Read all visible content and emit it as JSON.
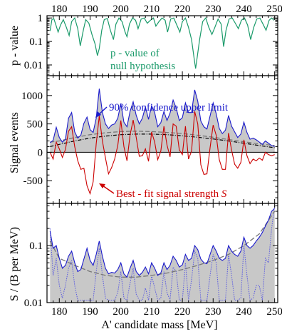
{
  "chart_data": [
    {
      "type": "line",
      "panel": "top",
      "xlabel": "",
      "ylabel": "p - value",
      "xlim": [
        176,
        251
      ],
      "yscale": "log",
      "ylim": [
        0.0035,
        1.25
      ],
      "x_ticks": [
        "180",
        "190",
        "200",
        "210",
        "220",
        "230",
        "240",
        "250"
      ],
      "y_ticks": [
        "0.01",
        "0.1",
        "1"
      ],
      "annotation": "p - value of\nnull hypothesis",
      "annotation_lines": [
        "p - value of",
        "null hypothesis"
      ],
      "series": [
        {
          "color": "#1a9a6a",
          "x": [
            177,
            177.6,
            178.2,
            178.8,
            179.6,
            180.4,
            181.3,
            182.3,
            183.2,
            184.0,
            185.0,
            186.0,
            186.8,
            187.8,
            188.6,
            189.6,
            190.6,
            191.6,
            192.4,
            193.0,
            193.8,
            194.6,
            195.6,
            196.6,
            197.6,
            198.4,
            199.4,
            200.4,
            201.4,
            202.0,
            202.8,
            203.8,
            204.8,
            205.6,
            206.6,
            207.6,
            208.6,
            209.6,
            210.6,
            211.4,
            212.4,
            213.4,
            214.4,
            215.2,
            216.2,
            217.2,
            218.2,
            219.2,
            220.0,
            221.0,
            222.0,
            223.0,
            223.8,
            224.3,
            224.8,
            225.6,
            226.6,
            227.6,
            228.6,
            229.6,
            230.4,
            231.6,
            232.6,
            233.4,
            234.2,
            235.2,
            236.2,
            237.2,
            238.2,
            239.2,
            240.2,
            241.2,
            242.2,
            243.2,
            244.2,
            245.2,
            246.2,
            247.2,
            248.2,
            249.0,
            249.8
          ],
          "y": [
            0.28,
            0.85,
            0.95,
            0.55,
            0.25,
            0.5,
            0.85,
            0.4,
            0.18,
            0.7,
            1.0,
            0.35,
            0.065,
            0.3,
            0.85,
            0.6,
            0.2,
            0.08,
            0.025,
            0.05,
            0.3,
            0.85,
            0.95,
            0.3,
            0.12,
            0.55,
            1.0,
            0.7,
            0.25,
            0.16,
            0.55,
            1.0,
            0.8,
            0.35,
            0.9,
            1.0,
            0.6,
            0.8,
            1.0,
            0.45,
            0.7,
            1.0,
            0.8,
            0.25,
            0.9,
            1.0,
            0.5,
            0.25,
            0.7,
            1.0,
            0.4,
            0.12,
            0.02,
            0.007,
            0.02,
            0.12,
            0.7,
            1.0,
            0.4,
            0.2,
            0.35,
            0.9,
            0.55,
            0.06,
            0.3,
            0.9,
            1.0,
            0.6,
            0.35,
            0.8,
            1.0,
            0.5,
            0.12,
            0.4,
            0.9,
            1.0,
            0.55,
            0.3,
            0.8,
            1.0,
            0.8
          ]
        }
      ]
    },
    {
      "type": "line",
      "panel": "middle",
      "xlabel": "",
      "ylabel": "Signal events",
      "xlim": [
        176,
        251
      ],
      "ylim": [
        -900,
        1350
      ],
      "y_ticks": [
        "-500",
        "0",
        "500",
        "1000"
      ],
      "upper_limit_label": "90% confidence  upper limit",
      "best_fit_label": "Best - fit signal strength S",
      "best_fit_label_parts": [
        "Best - fit signal strength ",
        "S"
      ],
      "series": [
        {
          "color": "#1a1acc",
          "role": "upper-limit",
          "x": [
            177,
            178,
            179,
            180,
            181,
            182,
            183,
            184,
            185,
            186,
            187,
            188,
            189,
            190,
            191,
            192,
            193,
            194,
            195,
            196,
            197,
            198,
            199,
            200,
            201,
            202,
            203,
            204,
            205,
            206,
            207,
            208,
            209,
            210,
            211,
            212,
            213,
            214,
            215,
            216,
            217,
            218,
            219,
            220,
            221,
            222,
            223,
            224,
            225,
            226,
            227,
            228,
            229,
            230,
            231,
            232,
            233,
            234,
            235,
            236,
            237,
            238,
            239,
            240,
            241,
            242,
            243,
            244,
            245,
            246,
            247,
            248,
            249,
            250
          ],
          "y": [
            170,
            210,
            440,
            260,
            180,
            230,
            600,
            700,
            360,
            250,
            300,
            510,
            620,
            400,
            350,
            600,
            1120,
            700,
            500,
            420,
            480,
            500,
            600,
            860,
            530,
            450,
            720,
            890,
            650,
            500,
            600,
            800,
            580,
            820,
            700,
            450,
            520,
            720,
            560,
            690,
            920,
            780,
            560,
            610,
            870,
            700,
            700,
            1100,
            900,
            550,
            450,
            410,
            640,
            870,
            680,
            420,
            330,
            390,
            650,
            460,
            360,
            260,
            320,
            530,
            350,
            230,
            250,
            220,
            180,
            140,
            200,
            160,
            120,
            100
          ]
        },
        {
          "color": "#cc0000",
          "role": "best-fit",
          "x": [
            177,
            178,
            179,
            180,
            181,
            182,
            183,
            184,
            185,
            186,
            187,
            188,
            189,
            190,
            191,
            192,
            193,
            194,
            195,
            196,
            197,
            198,
            199,
            200,
            201,
            202,
            203,
            204,
            205,
            206,
            207,
            208,
            209,
            210,
            211,
            212,
            213,
            214,
            215,
            216,
            217,
            218,
            219,
            220,
            221,
            222,
            223,
            224,
            225,
            226,
            227,
            228,
            229,
            230,
            231,
            232,
            233,
            234,
            235,
            236,
            237,
            238,
            239,
            240,
            241,
            242,
            243,
            244,
            245,
            246,
            247,
            248,
            249,
            250
          ],
          "y": [
            0,
            -120,
            180,
            60,
            -90,
            50,
            370,
            450,
            100,
            -150,
            -300,
            -280,
            -590,
            -730,
            -520,
            150,
            640,
            200,
            -100,
            -380,
            -270,
            -120,
            120,
            560,
            100,
            -150,
            300,
            570,
            260,
            -70,
            -60,
            60,
            -160,
            360,
            180,
            -130,
            20,
            460,
            130,
            -80,
            500,
            460,
            40,
            -40,
            460,
            -120,
            20,
            720,
            500,
            -220,
            -390,
            -380,
            80,
            480,
            300,
            -130,
            -300,
            -300,
            340,
            40,
            -210,
            -280,
            -180,
            220,
            -60,
            -200,
            -120,
            -150,
            -100,
            -140,
            0,
            -40,
            -60,
            -40
          ]
        },
        {
          "color": "#777777",
          "role": "background-envelope",
          "x": [
            177,
            180,
            185,
            190,
            195,
            200,
            205,
            210,
            215,
            220,
            225,
            230,
            235,
            240,
            245,
            250
          ],
          "y": [
            180,
            200,
            260,
            310,
            345,
            365,
            372,
            365,
            350,
            330,
            300,
            265,
            225,
            185,
            150,
            120
          ]
        },
        {
          "color": "#000000",
          "role": "expected-median",
          "x": [
            177,
            180,
            185,
            190,
            195,
            200,
            205,
            210,
            215,
            220,
            225,
            230,
            235,
            240,
            245,
            250
          ],
          "y": [
            100,
            140,
            200,
            250,
            285,
            310,
            320,
            320,
            310,
            290,
            265,
            235,
            200,
            160,
            120,
            80
          ]
        }
      ]
    },
    {
      "type": "line",
      "panel": "bottom",
      "xlabel": "A' candidate mass  [MeV]",
      "ylabel": "S / (B per MeV)",
      "xlim": [
        176,
        251
      ],
      "yscale": "log",
      "ylim": [
        0.01,
        0.55
      ],
      "x_ticks": [
        "180",
        "190",
        "200",
        "210",
        "220",
        "230",
        "240",
        "250"
      ],
      "y_ticks": [
        "0.01",
        "0.1"
      ],
      "series": [
        {
          "color": "#1a1acc",
          "role": "upper-limit",
          "x": [
            177,
            178,
            179,
            180,
            181,
            182,
            183,
            184,
            185,
            186,
            187,
            188,
            189,
            190,
            191,
            192,
            193,
            194,
            195,
            196,
            197,
            198,
            199,
            200,
            201,
            202,
            203,
            204,
            205,
            206,
            207,
            208,
            209,
            210,
            211,
            212,
            213,
            214,
            215,
            216,
            217,
            218,
            219,
            220,
            221,
            222,
            223,
            224,
            225,
            226,
            227,
            228,
            229,
            230,
            231,
            232,
            233,
            234,
            235,
            236,
            237,
            238,
            239,
            240,
            241,
            242,
            243,
            244,
            245,
            246,
            247,
            248,
            249,
            250
          ],
          "y": [
            0.18,
            0.09,
            0.1,
            0.06,
            0.04,
            0.045,
            0.065,
            0.08,
            0.05,
            0.035,
            0.038,
            0.058,
            0.09,
            0.055,
            0.045,
            0.07,
            0.12,
            0.065,
            0.04,
            0.032,
            0.034,
            0.033,
            0.038,
            0.05,
            0.032,
            0.028,
            0.04,
            0.055,
            0.035,
            0.03,
            0.034,
            0.042,
            0.032,
            0.05,
            0.04,
            0.03,
            0.033,
            0.05,
            0.038,
            0.045,
            0.065,
            0.055,
            0.042,
            0.046,
            0.07,
            0.055,
            0.06,
            0.1,
            0.085,
            0.058,
            0.05,
            0.048,
            0.07,
            0.1,
            0.08,
            0.06,
            0.055,
            0.06,
            0.1,
            0.08,
            0.07,
            0.065,
            0.08,
            0.14,
            0.1,
            0.09,
            0.1,
            0.12,
            0.14,
            0.17,
            0.22,
            0.28,
            0.4,
            0.45
          ]
        },
        {
          "color": "#5a5ae0",
          "role": "best-fit",
          "x": [
            177,
            178,
            179,
            180,
            181,
            182,
            183,
            184,
            185,
            186,
            187,
            188,
            189,
            190,
            191,
            192,
            193,
            194,
            195,
            196,
            197,
            198,
            199,
            200,
            201,
            202,
            203,
            204,
            205,
            206,
            207,
            208,
            209,
            210,
            211,
            212,
            213,
            214,
            215,
            216,
            217,
            218,
            219,
            220,
            221,
            222,
            223,
            224,
            225,
            226,
            227,
            228,
            229,
            230,
            231,
            232,
            233,
            234,
            235,
            236,
            237,
            238,
            239,
            240,
            241,
            242,
            243,
            244,
            245,
            246,
            247,
            248,
            249,
            250
          ],
          "y": [
            0.2,
            0.03,
            0.06,
            0.02,
            0.012,
            0.02,
            0.04,
            0.055,
            0.02,
            0.011,
            0.011,
            0.011,
            0.011,
            0.011,
            0.011,
            0.035,
            0.09,
            0.03,
            0.012,
            0.011,
            0.011,
            0.011,
            0.015,
            0.035,
            0.012,
            0.011,
            0.022,
            0.04,
            0.014,
            0.011,
            0.011,
            0.018,
            0.011,
            0.03,
            0.018,
            0.011,
            0.012,
            0.035,
            0.015,
            0.011,
            0.042,
            0.035,
            0.011,
            0.011,
            0.05,
            0.011,
            0.025,
            0.08,
            0.06,
            0.011,
            0.011,
            0.011,
            0.03,
            0.07,
            0.05,
            0.011,
            0.011,
            0.011,
            0.07,
            0.03,
            0.011,
            0.011,
            0.012,
            0.1,
            0.03,
            0.011,
            0.012,
            0.02,
            0.02,
            0.011,
            0.06,
            0.05,
            0.2,
            0.5
          ]
        },
        {
          "color": "#777777",
          "role": "background-envelope",
          "x": [
            177,
            180,
            185,
            190,
            195,
            200,
            205,
            210,
            215,
            220,
            225,
            230,
            235,
            240,
            245,
            250
          ],
          "y": [
            0.12,
            0.06,
            0.045,
            0.035,
            0.03,
            0.028,
            0.028,
            0.03,
            0.033,
            0.038,
            0.045,
            0.055,
            0.07,
            0.1,
            0.16,
            0.4
          ]
        }
      ]
    }
  ],
  "colors": {
    "p_value": "#1a9a6a",
    "upper_limit": "#1a1acc",
    "best_fit": "#cc0000",
    "band_fill": "#c8c8c8",
    "dashed_envelope": "#777777",
    "median": "#000000"
  }
}
